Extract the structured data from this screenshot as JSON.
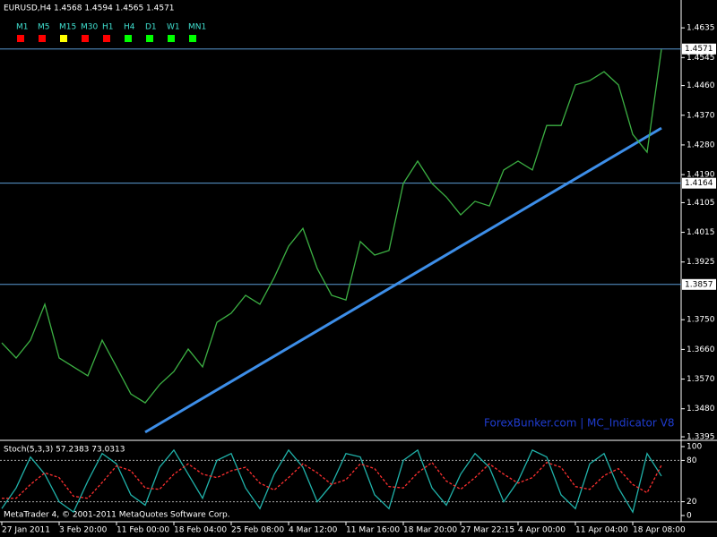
{
  "chart_data": [
    {
      "type": "line",
      "title": "EURUSD,H4  1.4568 1.4594 1.4565 1.4571",
      "categories": [
        "27 Jan 2011",
        null,
        null,
        null,
        "3 Feb 20:00",
        null,
        null,
        null,
        "11 Feb 00:00",
        null,
        null,
        null,
        "18 Feb 04:00",
        null,
        null,
        null,
        "25 Feb 08:00",
        null,
        null,
        null,
        "4 Mar 12:00",
        null,
        null,
        null,
        "11 Mar 16:00",
        null,
        null,
        null,
        "18 Mar 20:00",
        null,
        null,
        null,
        "27 Mar 22:15",
        null,
        null,
        null,
        "4 Apr 00:00",
        null,
        null,
        null,
        "11 Apr 04:00",
        null,
        null,
        null,
        "18 Apr 08:00",
        null,
        null
      ],
      "series": [
        {
          "color": "#3cb043",
          "values": [
            1.368,
            1.3634,
            1.3688,
            1.3797,
            1.3634,
            1.3607,
            1.358,
            1.3688,
            1.3607,
            1.3525,
            1.3498,
            1.3553,
            1.3593,
            1.3661,
            1.3607,
            1.3742,
            1.377,
            1.3824,
            1.3797,
            1.3878,
            1.3973,
            1.4027,
            1.3905,
            1.3824,
            1.381,
            1.3987,
            1.3946,
            1.396,
            1.4163,
            1.4231,
            1.4163,
            1.4122,
            1.4068,
            1.4109,
            1.4095,
            1.4204,
            1.4231,
            1.4204,
            1.4339,
            1.4339,
            1.4462,
            1.4475,
            1.4502,
            1.4462,
            1.4312,
            1.4258,
            1.457
          ]
        }
      ],
      "trendline": {
        "x": [
          10,
          46
        ],
        "values": [
          1.3409,
          1.4331
        ],
        "color": "#3d8ee8"
      },
      "hlines": [
        1.4571,
        1.4164,
        1.3857
      ],
      "hline_color": "#5b9bd5",
      "ylim": [
        1.3387,
        1.4714
      ],
      "yticks": [
        {
          "value": 1.4635,
          "label": "1.4635"
        },
        {
          "value": 1.4545,
          "label": "1.4545"
        },
        {
          "value": 1.446,
          "label": "1.4460"
        },
        {
          "value": 1.437,
          "label": "1.4370"
        },
        {
          "value": 1.428,
          "label": "1.4280"
        },
        {
          "value": 1.419,
          "label": "1.4190"
        },
        {
          "value": 1.4105,
          "label": "1.4105"
        },
        {
          "value": 1.4015,
          "label": "1.4015"
        },
        {
          "value": 1.3925,
          "label": "1.3925"
        },
        {
          "value": 1.375,
          "label": "1.3750"
        },
        {
          "value": 1.366,
          "label": "1.3660"
        },
        {
          "value": 1.357,
          "label": "1.3570"
        },
        {
          "value": 1.348,
          "label": "1.3480"
        },
        {
          "value": 1.3395,
          "label": "1.3395"
        }
      ],
      "timeframes": [
        {
          "label": "M1",
          "color": "#ff0000"
        },
        {
          "label": "M5",
          "color": "#ff0000"
        },
        {
          "label": "M15",
          "color": "#ffff00"
        },
        {
          "label": "M30",
          "color": "#ff0000"
        },
        {
          "label": "H1",
          "color": "#ff0000"
        },
        {
          "label": "H4",
          "color": "#00ff00"
        },
        {
          "label": "D1",
          "color": "#00ff00"
        },
        {
          "label": "W1",
          "color": "#00ff00"
        },
        {
          "label": "MN1",
          "color": "#00ff00"
        }
      ],
      "watermark": "ForexBunker.com | MC_Indicator V8"
    },
    {
      "type": "line",
      "title": "Stoch(5,3,3) 57.2383 73.0313",
      "series": [
        {
          "color": "#20b2aa",
          "values": [
            10,
            40,
            85,
            60,
            20,
            5,
            50,
            90,
            75,
            30,
            15,
            70,
            95,
            60,
            25,
            80,
            90,
            40,
            10,
            60,
            95,
            70,
            20,
            45,
            90,
            85,
            30,
            10,
            80,
            95,
            40,
            15,
            60,
            90,
            70,
            20,
            50,
            95,
            85,
            30,
            10,
            75,
            90,
            40,
            5,
            90,
            57.2383
          ]
        },
        {
          "color": "#ff3030",
          "dashed": true,
          "values": [
            25,
            25,
            45,
            62,
            55,
            28,
            25,
            48,
            72,
            65,
            40,
            38,
            60,
            75,
            60,
            55,
            65,
            70,
            47,
            37,
            55,
            75,
            62,
            45,
            52,
            75,
            68,
            42,
            40,
            62,
            77,
            50,
            38,
            55,
            75,
            60,
            47,
            55,
            77,
            70,
            42,
            38,
            58,
            68,
            45,
            33,
            73.0313
          ]
        }
      ],
      "levels": [
        80,
        20
      ],
      "ylim": [
        -7.8,
        106.5
      ],
      "yticks": [
        100,
        80,
        20,
        0
      ]
    }
  ],
  "footer": "MetaTrader 4, © 2001-2011 MetaQuotes Software Corp."
}
